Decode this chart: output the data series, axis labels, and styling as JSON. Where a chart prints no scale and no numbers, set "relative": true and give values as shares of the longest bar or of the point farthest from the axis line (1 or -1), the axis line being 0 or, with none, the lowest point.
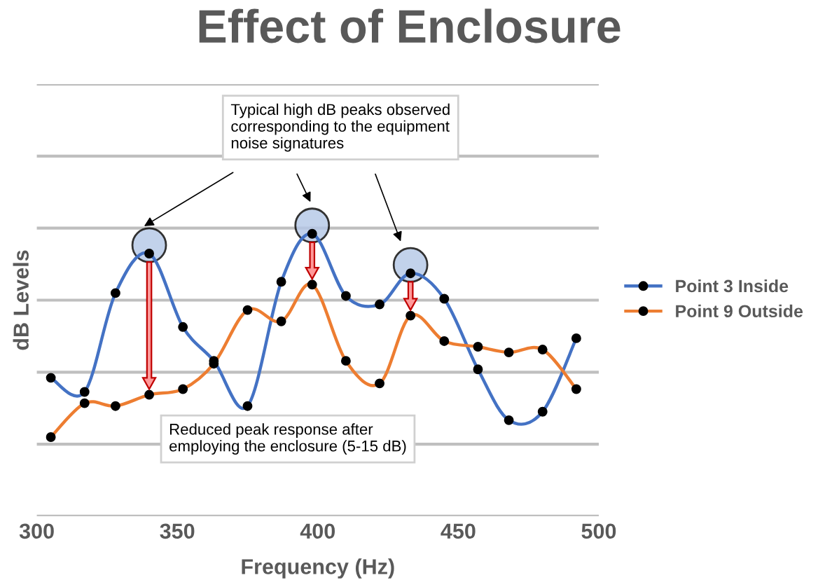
{
  "chart_data": {
    "type": "line",
    "title": "Effect of Enclosure",
    "xlabel": "Frequency (Hz)",
    "ylabel": "dB Levels",
    "relative": true,
    "x": [
      305,
      317,
      328,
      340,
      352,
      363,
      375,
      387,
      398,
      410,
      422,
      433,
      445,
      457,
      468,
      480,
      492
    ],
    "xlim": [
      300,
      500
    ],
    "xticks": [
      300,
      350,
      400,
      450,
      500
    ],
    "series": [
      {
        "name": "Point 3 Inside",
        "color": "#4472c4",
        "values": [
          0.49,
          0.44,
          0.79,
          0.93,
          0.67,
          0.55,
          0.39,
          0.83,
          1,
          0.78,
          0.75,
          0.86,
          0.77,
          0.52,
          0.34,
          0.37,
          0.63
        ]
      },
      {
        "name": "Point 9 Outside",
        "color": "#ed7d31",
        "values": [
          0.28,
          0.4,
          0.39,
          0.43,
          0.45,
          0.54,
          0.73,
          0.69,
          0.82,
          0.55,
          0.47,
          0.71,
          0.62,
          0.6,
          0.58,
          0.59,
          0.45
        ]
      }
    ],
    "annotations": [
      "Typical high dB peaks observed\ncorresponding to the equipment\nnoise signatures",
      "Reduced peak response after\nemploying the enclosure (5-15 dB)"
    ],
    "marker": "circle",
    "grid": "y",
    "legend": "right"
  }
}
